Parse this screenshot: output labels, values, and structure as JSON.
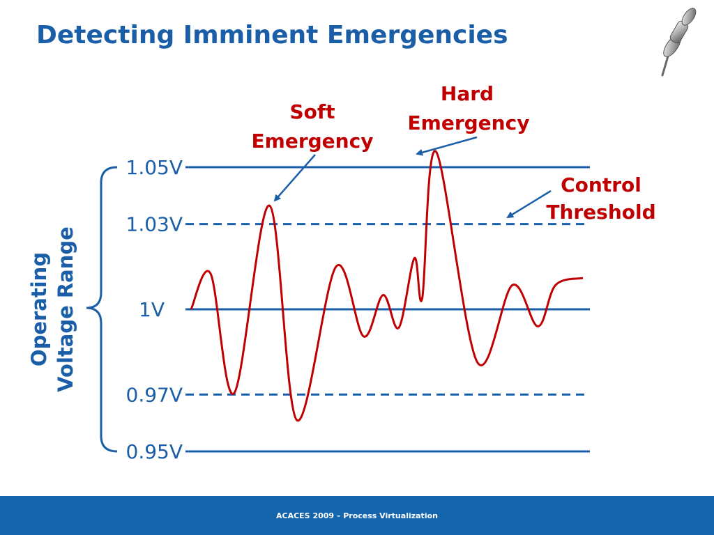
{
  "slide": {
    "title": "Detecting Imminent Emergencies",
    "footer": "ACACES 2009 – Process Virtualization"
  },
  "icons": [
    "pushpin-icon"
  ],
  "colors": {
    "title": "#1b5ea8",
    "axis_lines": "#1b5ea8",
    "signal": "#c00000",
    "annotation_text": "#c00000",
    "arrows": "#1b5ea8",
    "footer_bar": "#1565ad"
  },
  "chart_data": {
    "type": "line",
    "title": "",
    "ylabel": "Operating Voltage Range",
    "xlabel": "",
    "ylim": [
      0.95,
      1.05
    ],
    "grid": false,
    "reference_lines": [
      {
        "label": "1.05V",
        "value": 1.05,
        "style": "solid"
      },
      {
        "label": "1.03V",
        "value": 1.03,
        "style": "dashed"
      },
      {
        "label": "1V",
        "value": 1.0,
        "style": "solid"
      },
      {
        "label": "0.97V",
        "value": 0.97,
        "style": "dashed"
      },
      {
        "label": "0.95V",
        "value": 0.95,
        "style": "solid"
      }
    ],
    "series": [
      {
        "x": [
          0,
          0.05,
          0.11,
          0.2,
          0.27,
          0.37,
          0.44,
          0.49,
          0.53,
          0.57,
          0.59,
          0.625,
          0.73,
          0.82,
          0.885,
          0.93,
          1.0
        ],
        "values": [
          1.0,
          1.0125,
          0.9705,
          1.0365,
          0.961,
          1.015,
          0.9905,
          1.005,
          0.9935,
          1.018,
          1.004,
          1.0555,
          0.9815,
          1.0085,
          0.994,
          1.0085,
          1.011
        ]
      }
    ],
    "annotations": [
      {
        "text_lines": [
          "Soft",
          "Emergency"
        ],
        "points_to": "first peak above control threshold"
      },
      {
        "text_lines": [
          "Hard",
          "Emergency"
        ],
        "points_to": "peak above 1.05V"
      },
      {
        "text_lines": [
          "Control",
          "Threshold"
        ],
        "points_to": "1.03V dashed line"
      }
    ]
  }
}
